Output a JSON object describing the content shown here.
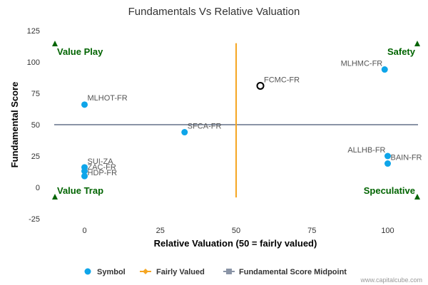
{
  "chart_data": {
    "type": "scatter",
    "title": "Fundamentals Vs Relative Valuation",
    "xlabel": "Relative Valuation (50 = fairly valued)",
    "ylabel": "Fundamental Score",
    "xlim": [
      -10,
      110
    ],
    "ylim": [
      -25,
      125
    ],
    "x_ticks": [
      0,
      25,
      50,
      75,
      100
    ],
    "y_ticks": [
      -25,
      0,
      25,
      50,
      75,
      100,
      125
    ],
    "grid": false,
    "legend_position": "bottom",
    "series": [
      {
        "name": "Symbol",
        "color": "#0ea5e9",
        "points": [
          {
            "label": "MLHMC-FR",
            "x": 99,
            "y": 94
          },
          {
            "label": "FCMC-FR",
            "x": 58,
            "y": 81,
            "highlight": true
          },
          {
            "label": "MLHOT-FR",
            "x": 0,
            "y": 66
          },
          {
            "label": "SFCA-FR",
            "x": 33,
            "y": 44
          },
          {
            "label": "ALLHB-FR",
            "x": 100,
            "y": 25
          },
          {
            "label": "BAIN-FR",
            "x": 100,
            "y": 19
          },
          {
            "label": "SUI-ZA",
            "x": 0,
            "y": 16
          },
          {
            "label": "ZAC-FR",
            "x": 0,
            "y": 13
          },
          {
            "label": "HDP-FR",
            "x": 0,
            "y": 9
          }
        ]
      },
      {
        "name": "Fairly Valued",
        "color": "#f5a623",
        "x": 50,
        "y_range": [
          -8,
          115
        ]
      },
      {
        "name": "Fundamental Score Midpoint",
        "color": "#8a94a6",
        "y": 50,
        "x_range": [
          -10,
          110
        ]
      }
    ],
    "quadrant_labels": [
      {
        "text": "Value Play",
        "position": "top-left"
      },
      {
        "text": "Safety",
        "position": "top-right"
      },
      {
        "text": "Value Trap",
        "position": "bottom-left"
      },
      {
        "text": "Speculative",
        "position": "bottom-right"
      }
    ],
    "marker_color": "#006400",
    "highlight_color": "#000000"
  },
  "credit": "www.capitalcube.com"
}
